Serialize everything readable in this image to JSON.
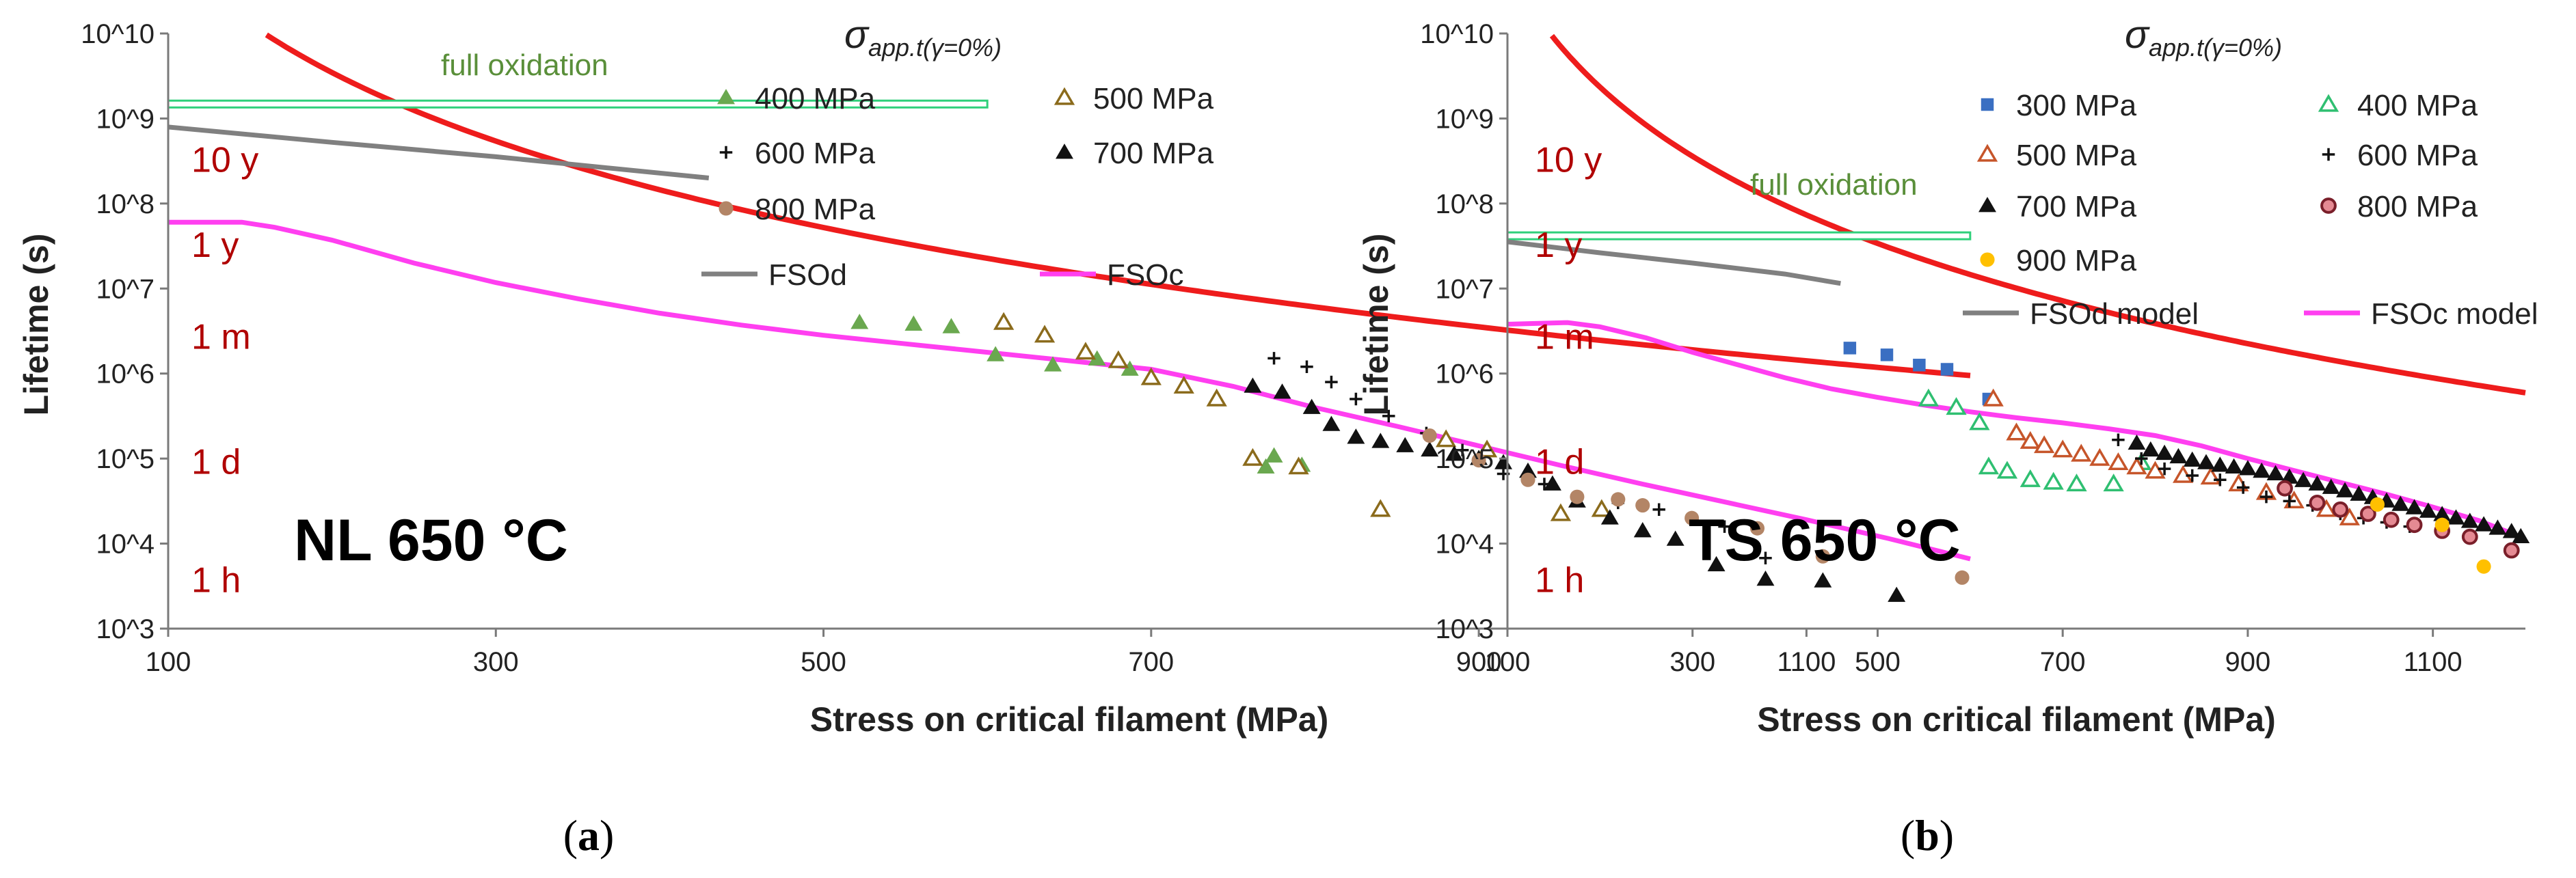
{
  "colors": {
    "red": "#ee1c1c",
    "green_line": "#2fd07a",
    "fsod": "#808080",
    "fsoc": "#ff3ff0",
    "label_red": "#b00000",
    "label_green": "#5a8f3a",
    "tri_green": "#6aa84f",
    "tri_brown": "#8b6b1c",
    "tan": "#b38566",
    "blue": "#3a6fc2",
    "tri_orange": "#c6552a",
    "tri_teal": "#2fbf71",
    "yellow": "#ffc000",
    "black": "#111111"
  },
  "chart_data": [
    {
      "id": "a",
      "type": "scatter",
      "panel_label": "(a)",
      "panel_label_parts": {
        "open": "(",
        "letter": "a",
        "close": ")"
      },
      "title": "NL 650 °C",
      "xlabel": "Stress on critical filament (MPa)",
      "ylabel": "Lifetime (s)",
      "xlim": [
        100,
        1200
      ],
      "ylim_log10": [
        3,
        10
      ],
      "xticks": [
        100,
        300,
        500,
        700,
        900,
        1100
      ],
      "yticks": [
        "10^3",
        "10^4",
        "10^5",
        "10^6",
        "10^7",
        "10^8",
        "10^9",
        "10^10"
      ],
      "legend_title": "σapp.t(γ=0%)",
      "time_labels": [
        {
          "text": "10 y",
          "log": 8.5
        },
        {
          "text": "1 y",
          "log": 7.5
        },
        {
          "text": "1 m",
          "log": 6.42
        },
        {
          "text": "1 d",
          "log": 4.95
        },
        {
          "text": "1 h",
          "log": 3.56
        }
      ],
      "full_oxidation": {
        "label": "full oxidation",
        "x_range": [
          100,
          600
        ],
        "log": 9.17
      },
      "red_curve": {
        "k": 1.2e+20,
        "n": 4.58
      },
      "lines": [
        {
          "name": "FSOd",
          "color": "#808080",
          "points": [
            [
              100,
              8.9
            ],
            [
              200,
              8.72
            ],
            [
              300,
              8.55
            ],
            [
              430,
              8.3
            ]
          ]
        },
        {
          "name": "FSOc",
          "color": "#ff3ff0",
          "points": [
            [
              100,
              7.78
            ],
            [
              145,
              7.78
            ],
            [
              165,
              7.72
            ],
            [
              200,
              7.57
            ],
            [
              250,
              7.3
            ],
            [
              300,
              7.07
            ],
            [
              350,
              6.88
            ],
            [
              400,
              6.71
            ],
            [
              450,
              6.57
            ],
            [
              500,
              6.45
            ],
            [
              550,
              6.35
            ],
            [
              600,
              6.25
            ],
            [
              650,
              6.15
            ],
            [
              700,
              6.05
            ],
            [
              750,
              5.85
            ],
            [
              800,
              5.6
            ],
            [
              850,
              5.38
            ],
            [
              900,
              5.15
            ],
            [
              950,
              4.92
            ],
            [
              1000,
              4.7
            ],
            [
              1050,
              4.49
            ],
            [
              1100,
              4.28
            ],
            [
              1150,
              4.06
            ],
            [
              1200,
              3.82
            ]
          ]
        }
      ],
      "legend_columns": 2,
      "series": [
        {
          "name": "400 MPa",
          "marker": "tri",
          "color": "#6aa84f",
          "points": [
            [
              522,
              6.6
            ],
            [
              555,
              6.58
            ],
            [
              578,
              6.55
            ],
            [
              605,
              6.22
            ],
            [
              640,
              6.1
            ],
            [
              667,
              6.17
            ],
            [
              687,
              6.05
            ],
            [
              775,
              5.03
            ],
            [
              792,
              4.92
            ],
            [
              770,
              4.9
            ]
          ]
        },
        {
          "name": "500 MPa",
          "marker": "tri-open",
          "color": "#8b6b1c",
          "points": [
            [
              610,
              6.6
            ],
            [
              635,
              6.45
            ],
            [
              660,
              6.25
            ],
            [
              680,
              6.15
            ],
            [
              700,
              5.95
            ],
            [
              720,
              5.85
            ],
            [
              740,
              5.7
            ],
            [
              762,
              5.0
            ],
            [
              790,
              4.9
            ],
            [
              840,
              4.4
            ],
            [
              950,
              4.35
            ],
            [
              975,
              4.4
            ],
            [
              880,
              5.22
            ],
            [
              905,
              5.1
            ]
          ]
        },
        {
          "name": "600 MPa",
          "marker": "plus",
          "color": "#111111",
          "points": [
            [
              775,
              6.18
            ],
            [
              795,
              6.08
            ],
            [
              810,
              5.9
            ],
            [
              825,
              5.7
            ],
            [
              845,
              5.5
            ],
            [
              868,
              5.3
            ],
            [
              890,
              5.1
            ],
            [
              915,
              4.82
            ],
            [
              940,
              4.7
            ],
            [
              960,
              4.55
            ],
            [
              985,
              4.48
            ],
            [
              1010,
              4.4
            ],
            [
              1050,
              4.2
            ],
            [
              1075,
              3.83
            ]
          ]
        },
        {
          "name": "700 MPa",
          "marker": "tri",
          "color": "#111111",
          "points": [
            [
              762,
              5.85
            ],
            [
              780,
              5.78
            ],
            [
              798,
              5.6
            ],
            [
              810,
              5.4
            ],
            [
              825,
              5.25
            ],
            [
              840,
              5.2
            ],
            [
              855,
              5.15
            ],
            [
              870,
              5.1
            ],
            [
              885,
              5.05
            ],
            [
              900,
              5.0
            ],
            [
              915,
              4.95
            ],
            [
              930,
              4.85
            ],
            [
              945,
              4.7
            ],
            [
              960,
              4.5
            ],
            [
              980,
              4.3
            ],
            [
              1000,
              4.15
            ],
            [
              1020,
              4.05
            ],
            [
              1045,
              3.75
            ],
            [
              1075,
              3.58
            ],
            [
              1110,
              3.56
            ],
            [
              1155,
              3.39
            ]
          ]
        },
        {
          "name": "800 MPa",
          "marker": "dot",
          "color": "#b38566",
          "points": [
            [
              870,
              5.27
            ],
            [
              900,
              4.98
            ],
            [
              930,
              4.75
            ],
            [
              960,
              4.55
            ],
            [
              985,
              4.52
            ],
            [
              1000,
              4.45
            ],
            [
              1030,
              4.3
            ],
            [
              1070,
              4.18
            ],
            [
              1110,
              3.85
            ],
            [
              1195,
              3.6
            ]
          ]
        }
      ]
    },
    {
      "id": "b",
      "type": "scatter",
      "panel_label": "(b)",
      "panel_label_parts": {
        "open": "(",
        "letter": "b",
        "close": ")"
      },
      "title": "TS 650 °C",
      "xlabel": "Stress on critical filament (MPa)",
      "ylabel": "Lifetime (s)",
      "xlim": [
        100,
        1200
      ],
      "ylim_log10": [
        3,
        10
      ],
      "xticks": [
        100,
        300,
        500,
        700,
        900,
        1100
      ],
      "yticks": [
        "10^3",
        "10^4",
        "10^5",
        "10^6",
        "10^7",
        "10^8",
        "10^9",
        "10^10"
      ],
      "legend_title": "σapp.t(γ=0%)",
      "time_labels": [
        {
          "text": "10 y",
          "log": 8.5
        },
        {
          "text": "1 y",
          "log": 7.5
        },
        {
          "text": "1 m",
          "log": 6.42
        },
        {
          "text": "1 d",
          "log": 4.95
        },
        {
          "text": "1 h",
          "log": 3.56
        }
      ],
      "full_oxidation": {
        "label": "full oxidation",
        "x_range": [
          100,
          600
        ],
        "log": 7.62
      },
      "red_curve": {
        "k": 1e+20,
        "n": 4.62
      },
      "lines": [
        {
          "name": "FSOd model",
          "color": "#808080",
          "points": [
            [
              100,
              7.55
            ],
            [
              200,
              7.42
            ],
            [
              300,
              7.3
            ],
            [
              400,
              7.17
            ],
            [
              460,
              7.06
            ]
          ]
        },
        {
          "name": "FSOc model",
          "color": "#ff3ff0",
          "points": [
            [
              100,
              6.58
            ],
            [
              165,
              6.6
            ],
            [
              200,
              6.55
            ],
            [
              250,
              6.42
            ],
            [
              300,
              6.25
            ],
            [
              350,
              6.1
            ],
            [
              400,
              5.95
            ],
            [
              450,
              5.82
            ],
            [
              500,
              5.72
            ],
            [
              550,
              5.63
            ],
            [
              600,
              5.55
            ],
            [
              650,
              5.48
            ],
            [
              700,
              5.42
            ],
            [
              750,
              5.35
            ],
            [
              800,
              5.27
            ],
            [
              850,
              5.15
            ],
            [
              900,
              5.0
            ],
            [
              950,
              4.86
            ],
            [
              1000,
              4.72
            ],
            [
              1050,
              4.58
            ],
            [
              1100,
              4.43
            ],
            [
              1150,
              4.27
            ],
            [
              1190,
              4.1
            ]
          ]
        }
      ],
      "legend_columns": 2,
      "series": [
        {
          "name": "300 MPa",
          "marker": "sq",
          "color": "#3a6fc2",
          "points": [
            [
              470,
              6.3
            ],
            [
              510,
              6.22
            ],
            [
              545,
              6.1
            ],
            [
              575,
              6.05
            ],
            [
              620,
              5.7
            ]
          ]
        },
        {
          "name": "400 MPa",
          "marker": "tri-open",
          "color": "#2fbf71",
          "points": [
            [
              555,
              5.7
            ],
            [
              585,
              5.6
            ],
            [
              610,
              5.42
            ],
            [
              620,
              4.9
            ],
            [
              640,
              4.85
            ],
            [
              665,
              4.75
            ],
            [
              690,
              4.72
            ],
            [
              715,
              4.7
            ],
            [
              755,
              4.7
            ],
            [
              785,
              4.95
            ]
          ]
        },
        {
          "name": "500 MPa",
          "marker": "tri-open",
          "color": "#c6552a",
          "points": [
            [
              625,
              5.7
            ],
            [
              650,
              5.3
            ],
            [
              665,
              5.2
            ],
            [
              680,
              5.15
            ],
            [
              700,
              5.1
            ],
            [
              720,
              5.05
            ],
            [
              740,
              5.0
            ],
            [
              760,
              4.95
            ],
            [
              780,
              4.9
            ],
            [
              800,
              4.85
            ],
            [
              830,
              4.8
            ],
            [
              860,
              4.78
            ],
            [
              890,
              4.7
            ],
            [
              920,
              4.6
            ],
            [
              950,
              4.5
            ],
            [
              985,
              4.4
            ],
            [
              1010,
              4.3
            ]
          ]
        },
        {
          "name": "700 MPa",
          "marker": "tri",
          "color": "#111111",
          "points": [
            [
              780,
              5.18
            ],
            [
              795,
              5.1
            ],
            [
              810,
              5.06
            ],
            [
              825,
              5.02
            ],
            [
              840,
              4.98
            ],
            [
              855,
              4.95
            ],
            [
              870,
              4.92
            ],
            [
              885,
              4.9
            ],
            [
              900,
              4.88
            ],
            [
              915,
              4.85
            ],
            [
              930,
              4.82
            ],
            [
              945,
              4.78
            ],
            [
              960,
              4.74
            ],
            [
              975,
              4.7
            ],
            [
              990,
              4.66
            ],
            [
              1005,
              4.62
            ],
            [
              1020,
              4.58
            ],
            [
              1035,
              4.54
            ],
            [
              1050,
              4.5
            ],
            [
              1065,
              4.46
            ],
            [
              1080,
              4.42
            ],
            [
              1095,
              4.38
            ],
            [
              1110,
              4.34
            ],
            [
              1125,
              4.3
            ],
            [
              1140,
              4.26
            ],
            [
              1155,
              4.22
            ],
            [
              1170,
              4.18
            ],
            [
              1185,
              4.14
            ],
            [
              1195,
              4.08
            ]
          ]
        },
        {
          "name": "600 MPa",
          "marker": "plus",
          "color": "#111111",
          "points": [
            [
              760,
              5.22
            ],
            [
              785,
              5.0
            ],
            [
              810,
              4.88
            ],
            [
              840,
              4.8
            ],
            [
              870,
              4.75
            ],
            [
              895,
              4.66
            ],
            [
              920,
              4.55
            ],
            [
              945,
              4.5
            ],
            [
              970,
              4.45
            ],
            [
              1000,
              4.35
            ],
            [
              1025,
              4.3
            ],
            [
              1050,
              4.25
            ],
            [
              1075,
              4.2
            ]
          ]
        },
        {
          "name": "800 MPa",
          "marker": "dot-ring",
          "color": "#7a1f2a",
          "points": [
            [
              940,
              4.65
            ],
            [
              975,
              4.48
            ],
            [
              1000,
              4.4
            ],
            [
              1030,
              4.35
            ],
            [
              1055,
              4.28
            ],
            [
              1080,
              4.22
            ],
            [
              1110,
              4.15
            ],
            [
              1140,
              4.08
            ],
            [
              1185,
              3.92
            ]
          ]
        },
        {
          "name": "900 MPa",
          "marker": "dot",
          "color": "#ffc000",
          "points": [
            [
              1040,
              4.46
            ],
            [
              1110,
              4.22
            ],
            [
              1155,
              3.73
            ]
          ]
        }
      ]
    }
  ]
}
